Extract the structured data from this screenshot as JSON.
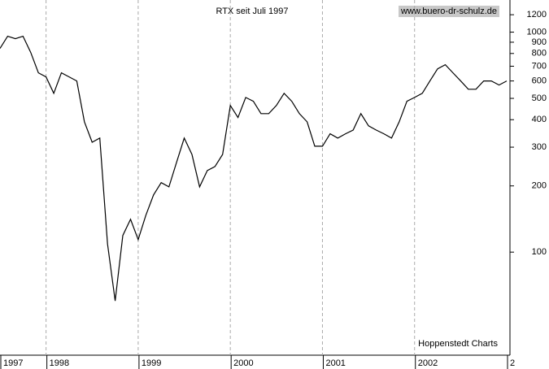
{
  "chart_data": {
    "type": "line",
    "title": "RTX seit Juli 1997",
    "source": "www.buero-dr-schulz.de",
    "credit": "Hoppenstedt Charts",
    "log_scale": true,
    "color": "#000000",
    "categories": [
      "1997",
      null,
      null,
      null,
      null,
      null,
      "1998",
      null,
      null,
      null,
      null,
      null,
      null,
      null,
      null,
      null,
      null,
      null,
      "1999",
      null,
      null,
      null,
      null,
      null,
      null,
      null,
      null,
      null,
      null,
      null,
      "2000",
      null,
      null,
      null,
      null,
      null,
      null,
      null,
      null,
      null,
      null,
      null,
      "2001",
      null,
      null,
      null,
      null,
      null,
      null,
      null,
      null,
      null,
      null,
      null,
      "2002",
      null,
      null,
      null,
      null,
      null,
      null,
      null,
      null,
      null,
      null,
      null,
      "2"
    ],
    "values": [
      843,
      958,
      934,
      958,
      808,
      653,
      626,
      527,
      653,
      626,
      600,
      391,
      316,
      330,
      109,
      60,
      119,
      141,
      114,
      147,
      182,
      207,
      198,
      256,
      330,
      278,
      198,
      235,
      245,
      278,
      464,
      409,
      505,
      485,
      426,
      426,
      464,
      527,
      485,
      426,
      391,
      303,
      303,
      345,
      330,
      345,
      359,
      426,
      375,
      359,
      345,
      330,
      391,
      485,
      505,
      527,
      600,
      681,
      711,
      653,
      600,
      550,
      550,
      600,
      600,
      575,
      600
    ],
    "ylim": [
      34,
      1400
    ],
    "yticks": [
      100,
      200,
      300,
      400,
      500,
      600,
      700,
      800,
      900,
      1000,
      1200
    ]
  }
}
